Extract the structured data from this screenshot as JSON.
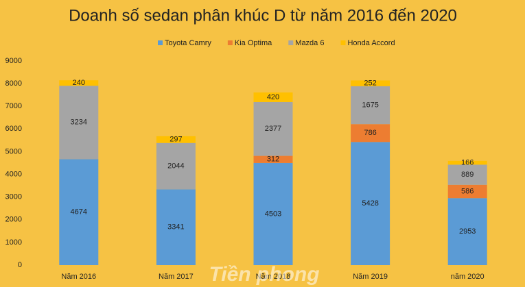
{
  "chart_data": {
    "type": "stacked-bar",
    "title": "Doanh số sedan phân khúc D từ năm 2016 đến 2020",
    "categories": [
      "Năm 2016",
      "Năm 2017",
      "Năm 2018",
      "Năm 2019",
      "năm 2020"
    ],
    "series": [
      {
        "name": "Toyota Camry",
        "color": "#5b9bd5",
        "values": [
          4674,
          3341,
          4503,
          5428,
          2953
        ]
      },
      {
        "name": "Kia Optima",
        "color": "#ed7d31",
        "values": [
          null,
          null,
          312,
          786,
          586
        ]
      },
      {
        "name": "Mazda 6",
        "color": "#a5a5a5",
        "values": [
          3234,
          2044,
          2377,
          1675,
          889
        ]
      },
      {
        "name": "Honda Accord",
        "color": "#ffc000",
        "values": [
          240,
          297,
          420,
          252,
          166
        ]
      }
    ],
    "ylim": [
      0,
      9000
    ],
    "yticks": [
      0,
      1000,
      2000,
      3000,
      4000,
      5000,
      6000,
      7000,
      8000,
      9000
    ],
    "legend": "top",
    "watermark": "Tiền phong"
  }
}
